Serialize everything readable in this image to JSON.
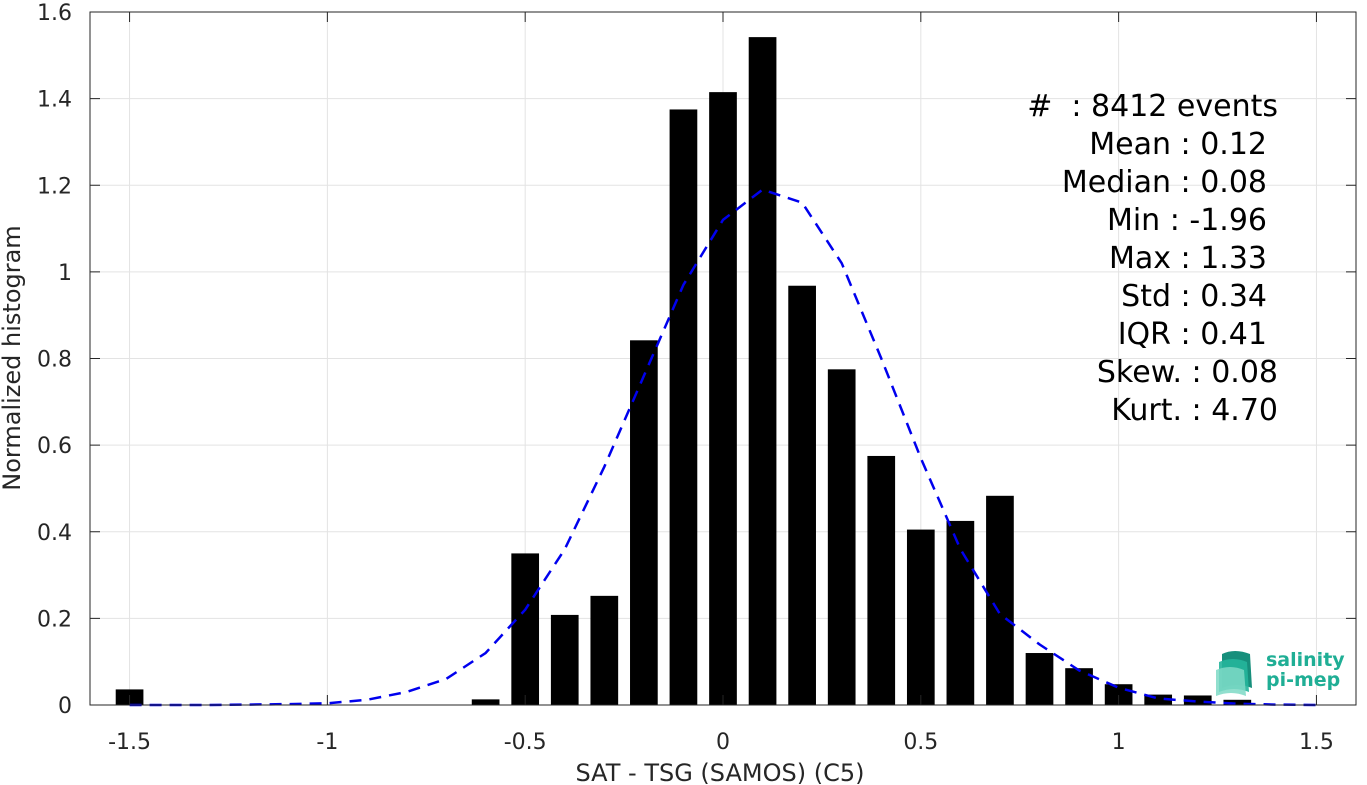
{
  "chart_data": {
    "type": "bar",
    "xlabel": "SAT - TSG (SAMOS) (C5)",
    "ylabel": "Normalized histogram",
    "xlim": [
      -1.6,
      1.6
    ],
    "ylim": [
      0,
      1.6
    ],
    "xticks": [
      "-1.5",
      "-1",
      "-0.5",
      "0",
      "0.5",
      "1",
      "1.5"
    ],
    "xtick_values": [
      -1.5,
      -1,
      -0.5,
      0,
      0.5,
      1,
      1.5
    ],
    "yticks": [
      "0",
      "0.2",
      "0.4",
      "0.6",
      "0.8",
      "1",
      "1.2",
      "1.4",
      "1.6"
    ],
    "ytick_values": [
      0,
      0.2,
      0.4,
      0.6,
      0.8,
      1,
      1.2,
      1.4,
      1.6
    ],
    "grid": true,
    "bar_width": 0.07,
    "bars": {
      "x": [
        -1.5,
        -0.6,
        -0.5,
        -0.4,
        -0.3,
        -0.2,
        -0.1,
        0.0,
        0.1,
        0.2,
        0.3,
        0.4,
        0.5,
        0.6,
        0.7,
        0.8,
        0.9,
        1.0,
        1.1,
        1.2,
        1.3
      ],
      "values": [
        0.036,
        0.013,
        0.35,
        0.208,
        0.252,
        0.842,
        1.375,
        1.415,
        1.542,
        0.968,
        0.775,
        0.575,
        0.405,
        0.425,
        0.483,
        0.12,
        0.085,
        0.048,
        0.024,
        0.022,
        0.012
      ],
      "color": "#000000"
    },
    "fit_curve": {
      "style": "dashed",
      "color": "#0000ee",
      "x": [
        -1.5,
        -1.4,
        -1.3,
        -1.2,
        -1.1,
        -1.0,
        -0.9,
        -0.8,
        -0.7,
        -0.6,
        -0.5,
        -0.4,
        -0.3,
        -0.2,
        -0.1,
        0.0,
        0.1,
        0.2,
        0.3,
        0.4,
        0.5,
        0.6,
        0.7,
        0.8,
        0.9,
        1.0,
        1.1,
        1.2,
        1.3,
        1.4,
        1.5
      ],
      "y": [
        0.0,
        0.0,
        0.0,
        0.001,
        0.002,
        0.004,
        0.012,
        0.03,
        0.06,
        0.12,
        0.22,
        0.36,
        0.55,
        0.76,
        0.97,
        1.12,
        1.19,
        1.16,
        1.02,
        0.8,
        0.57,
        0.36,
        0.21,
        0.14,
        0.08,
        0.04,
        0.015,
        0.008,
        0.003,
        0.001,
        0.0
      ]
    }
  },
  "stats": [
    "#  : 8412 events",
    "Mean : 0.12",
    "Median : 0.08",
    "Min : -1.96",
    "Max : 1.33",
    "Std : 0.34",
    "IQR : 0.41",
    "Skew. : 0.08",
    "Kurt. : 4.70"
  ],
  "logo": {
    "line1": "salinity",
    "line2": "pi-mep",
    "color": "#1fae95"
  }
}
